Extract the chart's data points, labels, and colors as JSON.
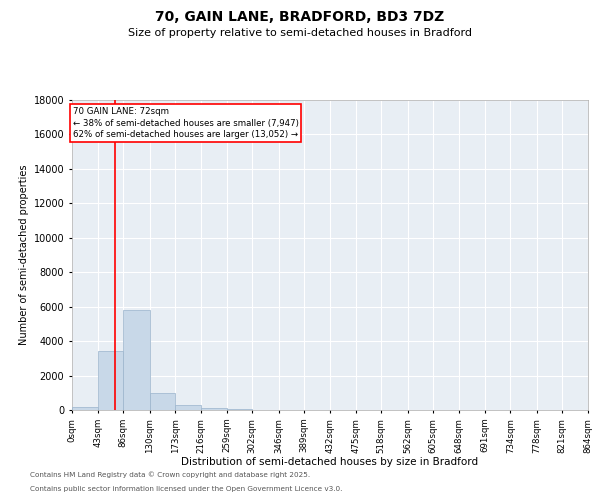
{
  "title": "70, GAIN LANE, BRADFORD, BD3 7DZ",
  "subtitle": "Size of property relative to semi-detached houses in Bradford",
  "xlabel": "Distribution of semi-detached houses by size in Bradford",
  "ylabel": "Number of semi-detached properties",
  "bar_color": "#c8d8e8",
  "bar_edge_color": "#9ab4cc",
  "background_color": "#e8eef4",
  "grid_color": "#ffffff",
  "property_line_x": 72,
  "property_label": "70 GAIN LANE: 72sqm",
  "annotation_line1": "← 38% of semi-detached houses are smaller (7,947)",
  "annotation_line2": "62% of semi-detached houses are larger (13,052) →",
  "box_edge_color": "red",
  "line_color": "red",
  "bin_edges": [
    0,
    43,
    86,
    130,
    173,
    216,
    259,
    302,
    346,
    389,
    432,
    475,
    518,
    562,
    605,
    648,
    691,
    734,
    778,
    821,
    864
  ],
  "bar_heights": [
    150,
    3400,
    5800,
    1000,
    280,
    140,
    50,
    8,
    4,
    2,
    1,
    0,
    0,
    0,
    0,
    0,
    0,
    0,
    0,
    0
  ],
  "ylim": [
    0,
    18000
  ],
  "yticks": [
    0,
    2000,
    4000,
    6000,
    8000,
    10000,
    12000,
    14000,
    16000,
    18000
  ],
  "footnote1": "Contains HM Land Registry data © Crown copyright and database right 2025.",
  "footnote2": "Contains public sector information licensed under the Open Government Licence v3.0."
}
